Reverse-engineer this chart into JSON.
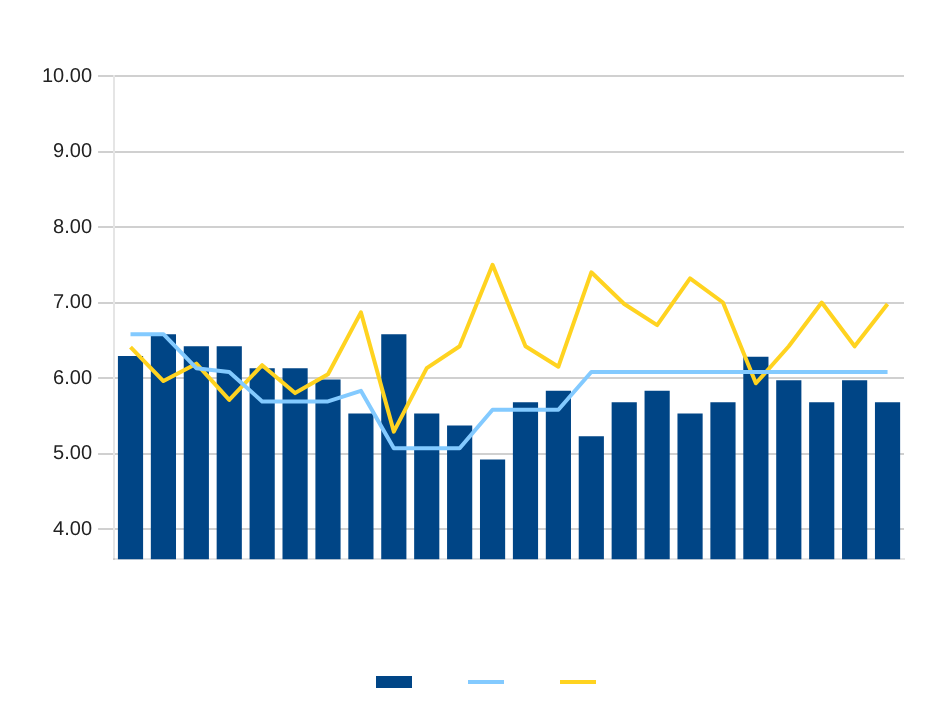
{
  "chart_data": {
    "type": "bar",
    "categories": [
      null,
      null,
      null,
      null,
      null,
      null,
      null,
      null,
      null,
      null,
      null,
      null,
      null,
      null,
      null,
      null,
      null,
      null,
      null,
      null,
      null,
      null,
      null,
      null
    ],
    "series": [
      {
        "color": "#004586",
        "values": [
          6.29,
          6.58,
          6.42,
          6.42,
          6.13,
          6.13,
          5.98,
          5.53,
          6.58,
          5.53,
          5.37,
          4.92,
          5.68,
          5.83,
          5.23,
          5.68,
          5.83,
          5.53,
          5.68,
          6.28,
          5.97,
          5.68,
          5.97,
          5.68
        ]
      },
      {
        "type": "line",
        "color": "#83caff",
        "values": [
          6.58,
          6.58,
          6.13,
          6.08,
          5.69,
          5.69,
          5.69,
          5.83,
          5.07,
          5.07,
          5.07,
          5.58,
          5.58,
          5.58,
          6.08,
          6.08,
          6.08,
          6.08,
          6.08,
          6.08,
          6.08,
          6.08,
          6.08,
          6.08
        ]
      },
      {
        "type": "line",
        "color": "#ffd320",
        "values": [
          6.41,
          5.96,
          6.19,
          5.71,
          6.17,
          5.8,
          6.05,
          6.87,
          5.29,
          6.13,
          6.42,
          7.5,
          6.42,
          6.15,
          7.4,
          6.98,
          6.7,
          7.32,
          7.0,
          5.93,
          6.42,
          7.0,
          6.42,
          6.98
        ]
      }
    ],
    "ylim": [
      3.6,
      10
    ],
    "yticks": [
      {
        "value": 4,
        "label": "4.00"
      },
      {
        "value": 5,
        "label": "5.00"
      },
      {
        "value": 6,
        "label": "6.00"
      },
      {
        "value": 7,
        "label": "7.00"
      },
      {
        "value": 8,
        "label": "8.00"
      },
      {
        "value": 9,
        "label": "9.00"
      },
      {
        "value": 10,
        "label": "10.00"
      }
    ],
    "grid": "y",
    "marker": "none",
    "line_style": "solid"
  }
}
